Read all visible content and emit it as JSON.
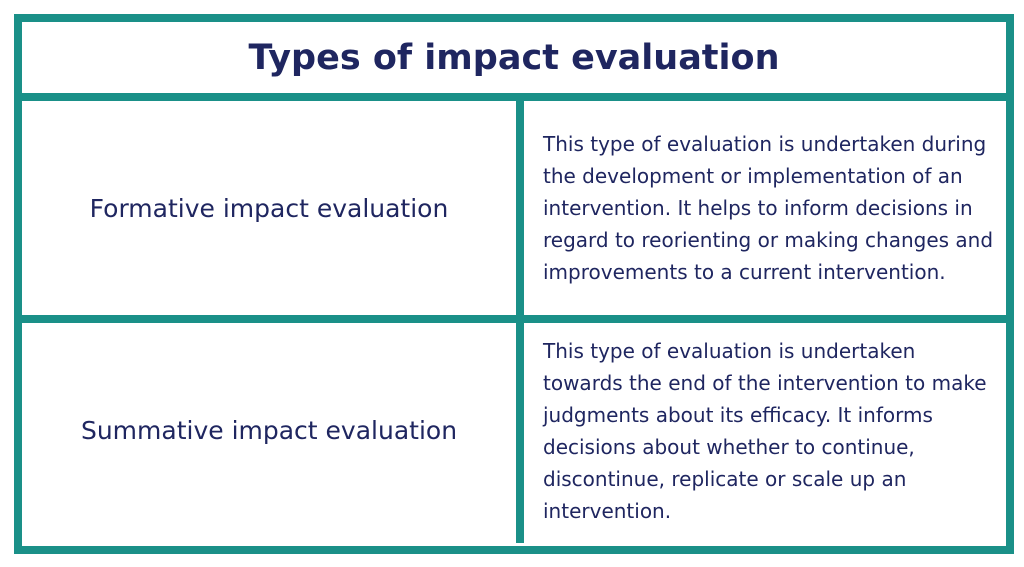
{
  "table": {
    "title": "Types of impact evaluation",
    "rows": [
      [
        "Formative impact evaluation",
        "This type of evaluation is undertaken during the development or implementation of an intervention. It helps to inform decisions in regard to reorienting or making changes and improvements to a current intervention."
      ],
      [
        "Summative impact evaluation",
        "This type of evaluation is undertaken towards the end of the intervention to make judgments about its efficacy. It informs decisions about whether to continue, discontinue, replicate or scale up an intervention."
      ]
    ]
  }
}
